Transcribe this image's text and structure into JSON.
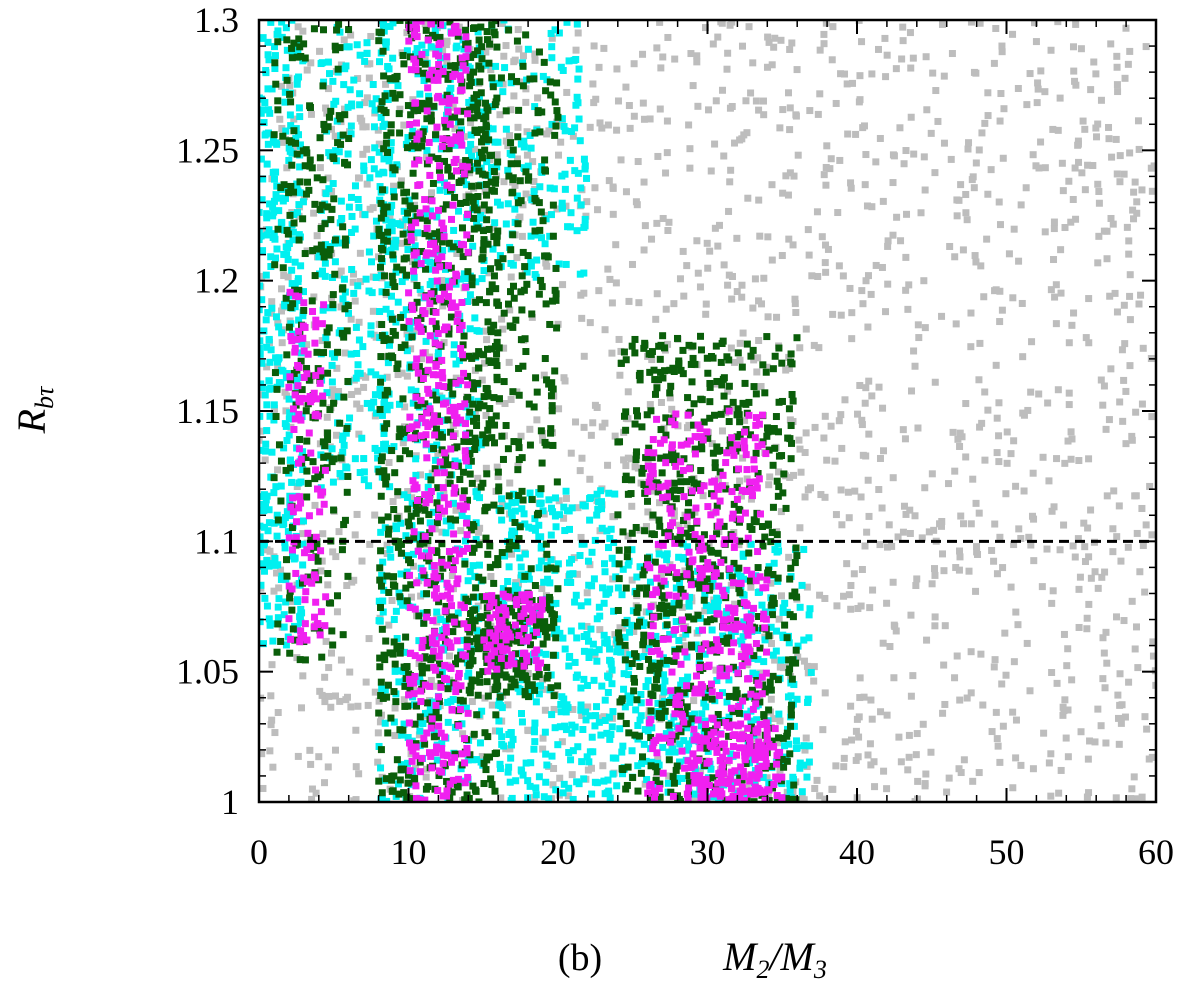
{
  "chart_data": {
    "type": "scatter",
    "title": "",
    "panel_label": "(b)",
    "xlabel": {
      "base": "M",
      "sub": "2",
      "mid": "/M",
      "sub2": "3"
    },
    "ylabel": {
      "base": "R",
      "sub": "bτ"
    },
    "xlim": [
      0,
      60
    ],
    "ylim": [
      1.0,
      1.3
    ],
    "x_ticks": [
      "0",
      "10",
      "20",
      "30",
      "40",
      "50",
      "60"
    ],
    "y_ticks": [
      "1",
      "1.05",
      "1.1",
      "1.15",
      "1.2",
      "1.25",
      "1.3"
    ],
    "reference_line": {
      "y": 1.1,
      "style": "dashed",
      "color": "#000000"
    },
    "grid": false,
    "legend": "none",
    "colors": {
      "gray": "#bdbdbd",
      "cyan": "#00f0f0",
      "green": "#0a5e0a",
      "magenta": "#f020f0"
    },
    "series": [
      {
        "color_key": "gray",
        "regions": [
          {
            "x": [
              0,
              60
            ],
            "y": [
              1.0,
              1.3
            ],
            "density": 1800
          }
        ]
      },
      {
        "color_key": "cyan",
        "regions": [
          {
            "x": [
              0,
              3
            ],
            "y": [
              1.06,
              1.3
            ],
            "density": 320
          },
          {
            "x": [
              4,
              9
            ],
            "y": [
              1.12,
              1.3
            ],
            "density": 200
          },
          {
            "x": [
              8,
              15
            ],
            "y": [
              1.0,
              1.3
            ],
            "density": 450
          },
          {
            "x": [
              16,
              24
            ],
            "y": [
              1.0,
              1.12
            ],
            "density": 350
          },
          {
            "x": [
              24,
              37
            ],
            "y": [
              1.0,
              1.1
            ],
            "density": 380
          },
          {
            "x": [
              14,
              22
            ],
            "y": [
              1.2,
              1.3
            ],
            "density": 150
          }
        ]
      },
      {
        "color_key": "green",
        "regions": [
          {
            "x": [
              1,
              6
            ],
            "y": [
              1.05,
              1.3
            ],
            "density": 240
          },
          {
            "x": [
              8,
              16
            ],
            "y": [
              1.0,
              1.3
            ],
            "density": 700
          },
          {
            "x": [
              14,
              20
            ],
            "y": [
              1.04,
              1.3
            ],
            "density": 300
          },
          {
            "x": [
              24,
              36
            ],
            "y": [
              1.0,
              1.18
            ],
            "density": 650
          },
          {
            "x": [
              14,
              20
            ],
            "y": [
              1.04,
              1.08
            ],
            "density": 120
          }
        ]
      },
      {
        "color_key": "magenta",
        "regions": [
          {
            "x": [
              2,
              4.5
            ],
            "y": [
              1.06,
              1.2
            ],
            "density": 110
          },
          {
            "x": [
              10,
              14
            ],
            "y": [
              1.0,
              1.3
            ],
            "density": 420
          },
          {
            "x": [
              15,
              19
            ],
            "y": [
              1.05,
              1.08
            ],
            "density": 90
          },
          {
            "x": [
              26,
              34
            ],
            "y": [
              1.0,
              1.15
            ],
            "density": 380
          },
          {
            "x": [
              29,
              35
            ],
            "y": [
              1.0,
              1.03
            ],
            "density": 120
          }
        ]
      }
    ]
  }
}
